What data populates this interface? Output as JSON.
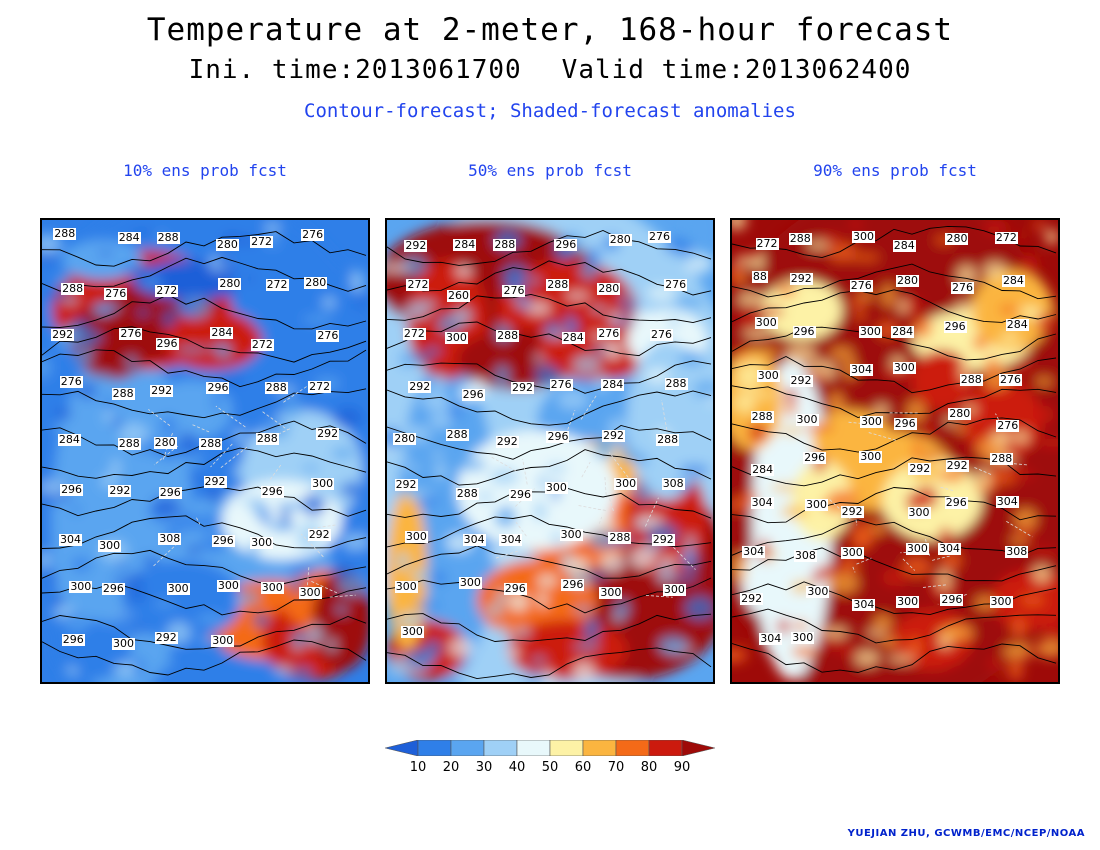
{
  "title": "Temperature at 2-meter, 168-hour forecast",
  "subtitle": {
    "init": "Ini. time:2013061700",
    "valid": "Valid time:2013062400"
  },
  "caption": "Contour-forecast; Shaded-forecast anomalies",
  "panels": [
    {
      "title": "10% ens prob fcst",
      "labels": [
        "288",
        "284",
        "288",
        "280",
        "272",
        "276",
        "288",
        "276",
        "272",
        "280",
        "272",
        "280",
        "292",
        "276",
        "296",
        "284",
        "272",
        "276",
        "276",
        "288",
        "292",
        "296",
        "288",
        "272",
        "284",
        "288",
        "280",
        "288",
        "288",
        "292",
        "296",
        "292",
        "296",
        "292",
        "296",
        "300",
        "304",
        "300",
        "308",
        "296",
        "300",
        "292",
        "300",
        "296",
        "300",
        "300",
        "300",
        "300",
        "296",
        "300",
        "292",
        "300"
      ]
    },
    {
      "title": "50% ens prob fcst",
      "labels": [
        "292",
        "284",
        "288",
        "296",
        "280",
        "276",
        "272",
        "260",
        "276",
        "288",
        "280",
        "276",
        "272",
        "300",
        "288",
        "284",
        "276",
        "276",
        "292",
        "296",
        "292",
        "276",
        "284",
        "288",
        "280",
        "288",
        "292",
        "296",
        "292",
        "288",
        "292",
        "288",
        "296",
        "300",
        "300",
        "308",
        "300",
        "304",
        "304",
        "300",
        "288",
        "292",
        "300",
        "300",
        "296",
        "296",
        "300",
        "300",
        "300"
      ]
    },
    {
      "title": "90% ens prob fcst",
      "labels": [
        "272",
        "288",
        "300",
        "284",
        "280",
        "272",
        "88",
        "292",
        "276",
        "280",
        "276",
        "284",
        "300",
        "296",
        "300",
        "284",
        "296",
        "284",
        "300",
        "292",
        "304",
        "300",
        "288",
        "276",
        "288",
        "300",
        "300",
        "296",
        "280",
        "276",
        "284",
        "296",
        "300",
        "292",
        "292",
        "288",
        "304",
        "300",
        "292",
        "300",
        "296",
        "304",
        "304",
        "308",
        "300",
        "300",
        "304",
        "308",
        "292",
        "300",
        "304",
        "300",
        "296",
        "300",
        "304",
        "300"
      ]
    }
  ],
  "colorbar": {
    "ticks": [
      "10",
      "20",
      "30",
      "40",
      "50",
      "60",
      "70",
      "80",
      "90"
    ],
    "colors": [
      "#1e5fd8",
      "#2f7fe8",
      "#5aa5f0",
      "#9fd0f6",
      "#e8f8fb",
      "#fdf2a6",
      "#fbb540",
      "#f46a18",
      "#cc1a0e",
      "#9e0a08"
    ]
  },
  "credit": "YUEJIAN ZHU, GCWMB/EMC/NCEP/NOAA"
}
